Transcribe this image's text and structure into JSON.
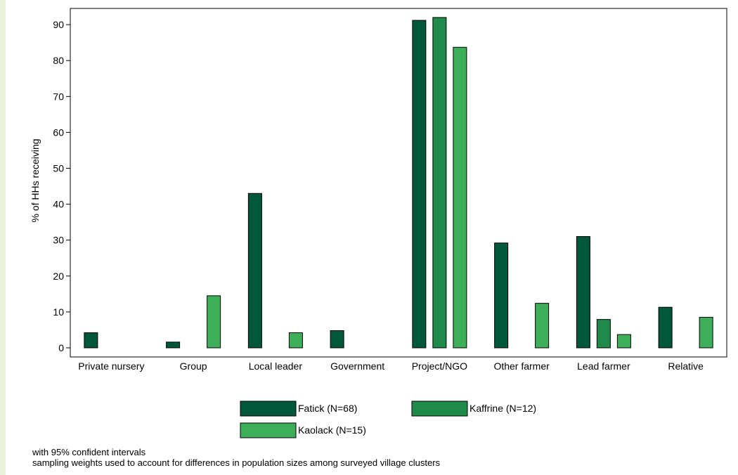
{
  "chart_data": {
    "type": "bar",
    "title": "",
    "xlabel": "",
    "ylabel": "% of HHs receiving",
    "ylim": [
      0,
      94
    ],
    "yticks": [
      0,
      10,
      20,
      30,
      40,
      50,
      60,
      70,
      80,
      90
    ],
    "categories": [
      "Private nursery",
      "Group",
      "Local leader",
      "Government",
      "Project/NGO",
      "Other farmer",
      "Lead farmer",
      "Relative"
    ],
    "series": [
      {
        "name": "Fatick (N=68)",
        "color": "#00573a",
        "values": [
          4.2,
          1.6,
          43.0,
          4.8,
          91.2,
          29.2,
          31.0,
          11.3
        ]
      },
      {
        "name": "Kaffrine (N=12)",
        "color": "#1f8a49",
        "values": [
          null,
          null,
          null,
          null,
          92.0,
          null,
          7.9,
          null
        ]
      },
      {
        "name": "Kaolack (N=15)",
        "color": "#3fae5a",
        "values": [
          null,
          14.5,
          4.2,
          null,
          83.7,
          12.4,
          3.7,
          8.5
        ]
      }
    ],
    "legend_position": "bottom",
    "notes": [
      "with 95% confident intervals",
      "sampling weights used to account for differences in population sizes among surveyed village clusters"
    ]
  }
}
